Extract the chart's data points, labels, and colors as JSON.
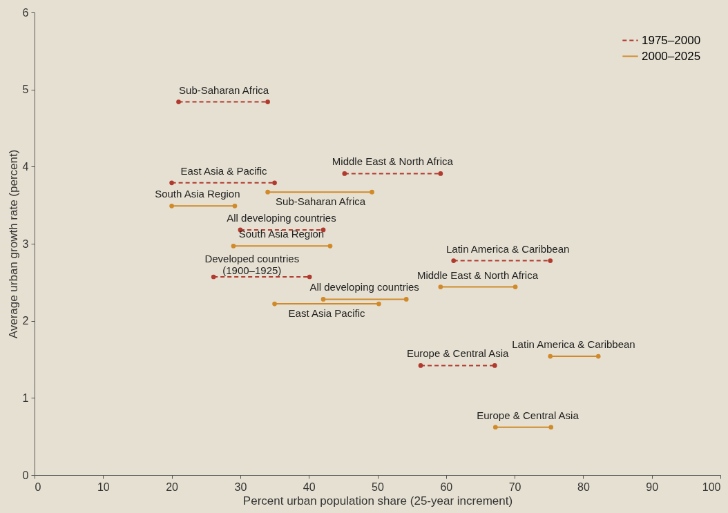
{
  "chart_data": {
    "type": "line",
    "xlabel": "Percent urban population share (25-year increment)",
    "ylabel": "Average urban growth rate (percent)",
    "xlim": [
      0,
      100
    ],
    "xticks": [
      0,
      10,
      20,
      30,
      40,
      50,
      60,
      70,
      80,
      90,
      100
    ],
    "ylim": [
      0,
      6
    ],
    "yticks": [
      {
        "value": 0,
        "label": "0"
      },
      {
        "value": 1,
        "label": "1"
      },
      {
        "value": 2,
        "label": "2"
      },
      {
        "value": 3,
        "label": "3"
      },
      {
        "value": 4,
        "label": "4"
      },
      {
        "value": 5,
        "label": "5"
      },
      {
        "value": 6,
        "label": "6"
      }
    ],
    "grid": false,
    "legend": "top right",
    "marker": "circle",
    "series": [
      {
        "name": "1975–2000",
        "color": "#b03a2e",
        "line_style": "dashed",
        "x": [
          21,
          34,
          null,
          20,
          35,
          null,
          45.2,
          59.2,
          null,
          30,
          42.1,
          null,
          26.1,
          40.1,
          null,
          61.1,
          75.2,
          null,
          56.3,
          67.1
        ],
        "values": [
          4.84,
          4.84,
          null,
          3.79,
          3.79,
          null,
          3.91,
          3.91,
          null,
          3.18,
          3.18,
          null,
          2.57,
          2.57,
          null,
          2.78,
          2.78,
          null,
          1.42,
          1.42
        ]
      },
      {
        "name": "2000–2025",
        "color": "#d08a2a",
        "line_style": "solid",
        "x": [
          34,
          49.2,
          null,
          20,
          29.2,
          null,
          29,
          43.1,
          null,
          59.2,
          70.1,
          null,
          42.1,
          54.2,
          null,
          35,
          50.2,
          null,
          67.2,
          75.3,
          null,
          75.2,
          82.2
        ],
        "values": [
          3.67,
          3.67,
          null,
          3.49,
          3.49,
          null,
          2.97,
          2.97,
          null,
          2.44,
          2.44,
          null,
          2.28,
          2.28,
          null,
          2.22,
          2.22,
          null,
          0.62,
          0.62,
          null,
          1.54,
          1.54
        ]
      }
    ],
    "annotations": [
      {
        "text": "Sub-Saharan Africa",
        "x": 27.6,
        "y": 4.84
      },
      {
        "text": "East Asia & Pacific",
        "x": 27.6,
        "y": 3.79
      },
      {
        "text": "Middle East & North Africa",
        "x": 52.2,
        "y": 3.91
      },
      {
        "text": "South Asia Region",
        "x": 23.75,
        "y": 3.49
      },
      {
        "text": "Sub-Saharan Africa",
        "x": 41.7,
        "y": 3.67
      },
      {
        "text": "All developing countries",
        "x": 36.0,
        "y": 3.18
      },
      {
        "text": "South Asia Region",
        "x": 36.0,
        "y": 2.97
      },
      {
        "text": "Developed countries\n(1900–1925)",
        "x": 31.7,
        "y": 2.57
      },
      {
        "text": "Latin America & Caribbean",
        "x": 69.0,
        "y": 2.78
      },
      {
        "text": "Middle East & North Africa",
        "x": 64.6,
        "y": 2.44
      },
      {
        "text": "All developing countries",
        "x": 48.1,
        "y": 2.28
      },
      {
        "text": "East Asia Pacific",
        "x": 42.6,
        "y": 2.22
      },
      {
        "text": "Europe & Central Asia",
        "x": 61.7,
        "y": 1.42
      },
      {
        "text": "Latin America & Caribbean",
        "x": 78.6,
        "y": 1.54
      },
      {
        "text": "Europe & Central Asia",
        "x": 71.9,
        "y": 0.62
      }
    ]
  }
}
